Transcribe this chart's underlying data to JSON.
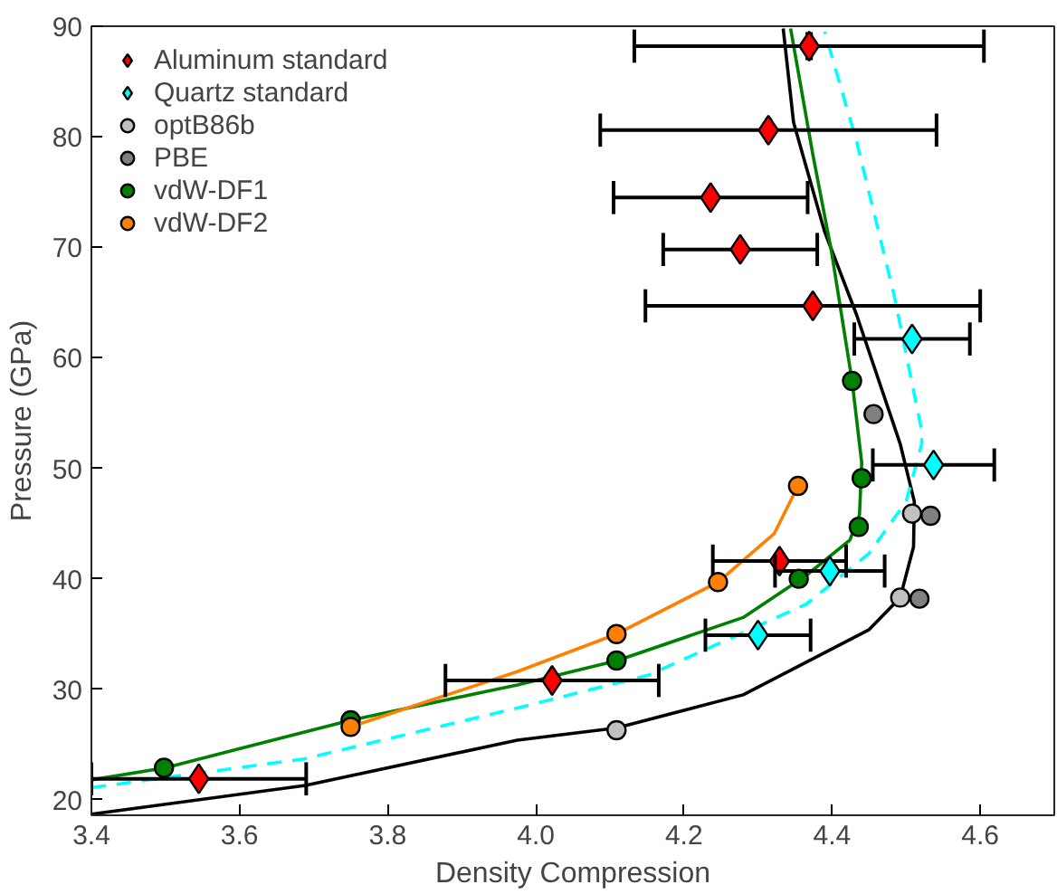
{
  "chart_data": {
    "type": "scatter",
    "xlabel": "Density Compression",
    "ylabel": "Pressure (GPa)",
    "xlim": [
      3.4,
      4.7
    ],
    "ylim": [
      18.6,
      90
    ],
    "xticks": [
      3.4,
      3.6,
      3.8,
      {
        "value": 4.0,
        "label": "4.0"
      },
      4.2,
      4.4,
      4.6
    ],
    "yticks": [
      20,
      30,
      40,
      50,
      60,
      70,
      80,
      90
    ],
    "grid": false,
    "legend": "top left",
    "series": [
      {
        "type": "line",
        "color": "#000000",
        "line_style": "solid",
        "x": [
          3.4,
          3.689,
          3.975,
          4.109,
          4.28,
          4.45,
          4.492,
          4.51,
          4.511,
          4.492,
          4.433,
          4.39,
          4.348,
          4.334
        ],
        "values": [
          18.7,
          21.3,
          25.4,
          26.5,
          29.5,
          35.4,
          38.3,
          42.9,
          47,
          52.2,
          63.9,
          71.4,
          81.3,
          89.8
        ]
      },
      {
        "type": "line",
        "color": "#008000",
        "line_style": "solid",
        "x": [
          3.4,
          3.5,
          3.75,
          3.975,
          4.11,
          4.28,
          4.365,
          4.424,
          4.437,
          4.44,
          4.427,
          4.399,
          4.374,
          4.344
        ],
        "values": [
          21.8,
          22.9,
          27.2,
          30.4,
          32.6,
          36.5,
          40.3,
          43.5,
          45.8,
          50.5,
          57.9,
          69.7,
          78.4,
          89.8
        ]
      },
      {
        "type": "line",
        "color": "#ff8000",
        "line_style": "solid",
        "x": [
          3.75,
          3.975,
          4.109,
          4.246,
          4.322,
          4.354
        ],
        "values": [
          26.6,
          31.6,
          35.0,
          39.7,
          44.1,
          48.4
        ]
      },
      {
        "type": "line",
        "color": "#00ffff",
        "line_style": "dashed",
        "x": [
          3.4,
          3.687,
          3.975,
          4.153,
          4.365,
          4.45,
          4.5,
          4.521,
          4.521,
          4.484,
          4.433,
          4.39
        ],
        "values": [
          21.1,
          23.7,
          28.3,
          31.3,
          37.7,
          42.3,
          47,
          52.2,
          53.4,
          65.6,
          79.6,
          89.5
        ]
      },
      {
        "name": "Aluminum standard",
        "marker": "diamond",
        "color": "#ff0000",
        "x": [
          4.369,
          4.314,
          4.236,
          4.276,
          4.374,
          4.329,
          4.022,
          3.545
        ],
        "values": [
          88.2,
          80.6,
          74.5,
          69.8,
          64.7,
          41.6,
          30.8,
          21.9
        ],
        "xerrors": [
          0.236,
          0.227,
          0.131,
          0.104,
          0.226,
          0.09,
          0.144,
          0.145
        ],
        "errors": [
          1.1,
          0.9,
          null,
          null,
          null,
          null,
          null,
          null
        ]
      },
      {
        "name": "Quartz standard",
        "marker": "diamond",
        "color": "#00ffff",
        "x": [
          4.3,
          4.397,
          4.537,
          4.508
        ],
        "values": [
          34.9,
          40.7,
          50.3,
          61.7
        ],
        "xerrors": [
          0.071,
          0.074,
          0.082,
          0.078
        ]
      },
      {
        "name": "optB86b",
        "marker": "circle",
        "color": "#c0c0c0",
        "x": [
          4.109,
          4.492,
          4.508
        ],
        "values": [
          26.3,
          38.3,
          45.9
        ]
      },
      {
        "name": "PBE",
        "marker": "circle",
        "color": "#808080",
        "x": [
          4.518,
          4.533,
          4.456
        ],
        "values": [
          38.2,
          45.7,
          54.9
        ]
      },
      {
        "name": "vdW-DF1",
        "marker": "circle",
        "color": "#008000",
        "x": [
          3.498,
          3.75,
          4.109,
          4.355,
          4.436,
          4.44,
          4.427
        ],
        "values": [
          22.9,
          27.2,
          32.6,
          40.0,
          44.7,
          49.1,
          57.9
        ]
      },
      {
        "name": "vdW-DF2",
        "marker": "circle",
        "color": "#ff8000",
        "x": [
          3.75,
          4.109,
          4.246,
          4.354
        ],
        "values": [
          26.6,
          35.0,
          39.7,
          48.4
        ]
      }
    ]
  }
}
